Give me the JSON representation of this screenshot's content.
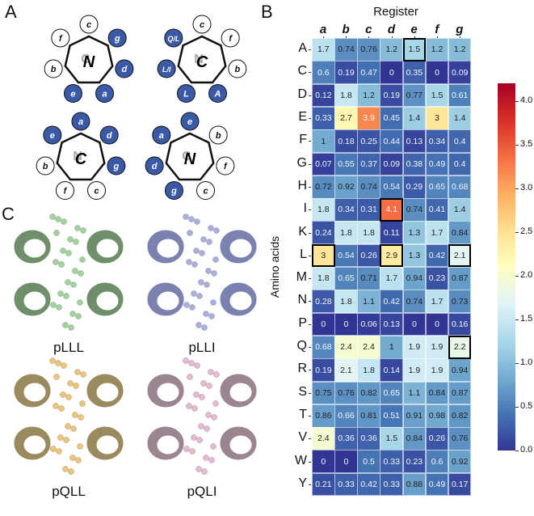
{
  "panels": {
    "a": "A",
    "b": "B",
    "c": "C"
  },
  "wheels": [
    {
      "center": "N",
      "ghost": "C",
      "positions": [
        {
          "label": "c",
          "filled": false
        },
        {
          "label": "g",
          "filled": true
        },
        {
          "label": "d",
          "filled": true
        },
        {
          "label": "a",
          "filled": true
        },
        {
          "label": "e",
          "filled": true
        },
        {
          "label": "b",
          "filled": false
        },
        {
          "label": "f",
          "filled": false
        }
      ]
    },
    {
      "center": "C",
      "ghost": "N",
      "positions": [
        {
          "label": "c",
          "filled": false
        },
        {
          "label": "f",
          "filled": false
        },
        {
          "label": "b",
          "filled": false
        },
        {
          "label": "A",
          "filled": true
        },
        {
          "label": "L",
          "filled": true
        },
        {
          "label": "L/I",
          "filled": true
        },
        {
          "label": "Q/L",
          "filled": true
        }
      ]
    },
    {
      "center": "C",
      "ghost": "N",
      "positions": [
        {
          "label": "a",
          "filled": true
        },
        {
          "label": "d",
          "filled": true
        },
        {
          "label": "g",
          "filled": true
        },
        {
          "label": "c",
          "filled": false
        },
        {
          "label": "f",
          "filled": false
        },
        {
          "label": "b",
          "filled": false
        },
        {
          "label": "e",
          "filled": true
        }
      ]
    },
    {
      "center": "N",
      "ghost": "C",
      "positions": [
        {
          "label": "e",
          "filled": true
        },
        {
          "label": "b",
          "filled": false
        },
        {
          "label": "f",
          "filled": false
        },
        {
          "label": "c",
          "filled": false
        },
        {
          "label": "g",
          "filled": true
        },
        {
          "label": "d",
          "filled": true
        },
        {
          "label": "a",
          "filled": true
        }
      ]
    }
  ],
  "structures": [
    {
      "name": "pLLL",
      "color": "#9fd49a",
      "helix": "#6f8f6a"
    },
    {
      "name": "pLLI",
      "color": "#a9b0e0",
      "helix": "#7c82b0"
    },
    {
      "name": "pQLL",
      "color": "#f2c574",
      "helix": "#9b8a5e"
    },
    {
      "name": "pQLI",
      "color": "#e9b8d4",
      "helix": "#9a8590"
    }
  ],
  "chart_data": {
    "type": "heatmap",
    "title": "Register",
    "xlabel": "Register",
    "ylabel": "Amino acids",
    "x": [
      "a",
      "b",
      "c",
      "d",
      "e",
      "f",
      "g"
    ],
    "y": [
      "A",
      "C",
      "D",
      "E",
      "F",
      "G",
      "H",
      "I",
      "K",
      "L",
      "M",
      "N",
      "P",
      "Q",
      "R",
      "S",
      "T",
      "V",
      "W",
      "Y"
    ],
    "values": [
      [
        1.7,
        0.74,
        0.76,
        1.2,
        1.5,
        1.2,
        1.2
      ],
      [
        0.6,
        0.19,
        0.47,
        0,
        0.35,
        0,
        0.09
      ],
      [
        0.12,
        1.8,
        1.2,
        0.19,
        0.77,
        1.5,
        0.61
      ],
      [
        0.33,
        2.7,
        3.9,
        0.45,
        1.4,
        3,
        1.4
      ],
      [
        1,
        0.18,
        0.25,
        0.44,
        0.13,
        0.34,
        0.4
      ],
      [
        0.07,
        0.55,
        0.37,
        0.09,
        0.38,
        0.49,
        0.4
      ],
      [
        0.72,
        0.92,
        0.74,
        0.54,
        0.29,
        0.65,
        0.68
      ],
      [
        1.8,
        0.34,
        0.31,
        4.1,
        0.74,
        0.41,
        1.4
      ],
      [
        0.24,
        1.8,
        1.8,
        0.11,
        1.3,
        1.7,
        0.84
      ],
      [
        3,
        0.54,
        0.26,
        2.9,
        1.3,
        0.42,
        2.1
      ],
      [
        1.8,
        0.65,
        0.71,
        1.7,
        0.94,
        0.23,
        0.87
      ],
      [
        0.28,
        1.8,
        1.1,
        0.42,
        0.74,
        1.7,
        0.73
      ],
      [
        0,
        0,
        0.06,
        0.13,
        0,
        0,
        0.16
      ],
      [
        0.68,
        2.4,
        2.4,
        1,
        1.9,
        1.9,
        2.2
      ],
      [
        0.19,
        2.1,
        1.8,
        0.14,
        1.9,
        1.9,
        0.94
      ],
      [
        0.75,
        0.76,
        0.82,
        0.65,
        1.1,
        0.84,
        0.87
      ],
      [
        0.86,
        0.66,
        0.81,
        0.51,
        0.91,
        0.98,
        0.82
      ],
      [
        2.4,
        0.36,
        0.36,
        1.5,
        0.84,
        0.26,
        0.76
      ],
      [
        0,
        0,
        0.5,
        0.33,
        0.23,
        0.6,
        0.92
      ],
      [
        0.21,
        0.33,
        0.42,
        0.33,
        0.88,
        0.49,
        0.17
      ]
    ],
    "highlighted": [
      [
        0,
        4
      ],
      [
        7,
        3
      ],
      [
        9,
        0
      ],
      [
        9,
        3
      ],
      [
        9,
        6
      ],
      [
        13,
        6
      ]
    ],
    "colorbar": {
      "min": 0.0,
      "max": 4.2,
      "ticks": [
        "0.0",
        "0.5",
        "1.0",
        "1.5",
        "2.0",
        "2.5",
        "3.0",
        "3.5",
        "4.0"
      ],
      "colormap": "RdYlBu_r"
    }
  }
}
